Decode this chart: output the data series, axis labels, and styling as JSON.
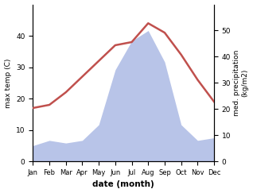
{
  "months": [
    "Jan",
    "Feb",
    "Mar",
    "Apr",
    "May",
    "Jun",
    "Jul",
    "Aug",
    "Sep",
    "Oct",
    "Nov",
    "Dec"
  ],
  "temperature": [
    17,
    18,
    22,
    27,
    32,
    37,
    38,
    44,
    41,
    34,
    26,
    19
  ],
  "precipitation": [
    6,
    8,
    7,
    8,
    14,
    35,
    46,
    50,
    38,
    14,
    8,
    9
  ],
  "temp_color": "#c0504d",
  "precip_fill_color": "#b8c4e8",
  "ylabel_left": "max temp (C)",
  "ylabel_right": "med. precipitation\n(kg/m2)",
  "xlabel": "date (month)",
  "ylim_left": [
    0,
    50
  ],
  "ylim_right": [
    0,
    60
  ],
  "yticks_left": [
    0,
    10,
    20,
    30,
    40
  ],
  "yticks_right": [
    0,
    10,
    20,
    30,
    40,
    50
  ],
  "bg_color": "#ffffff",
  "temp_linewidth": 1.8
}
